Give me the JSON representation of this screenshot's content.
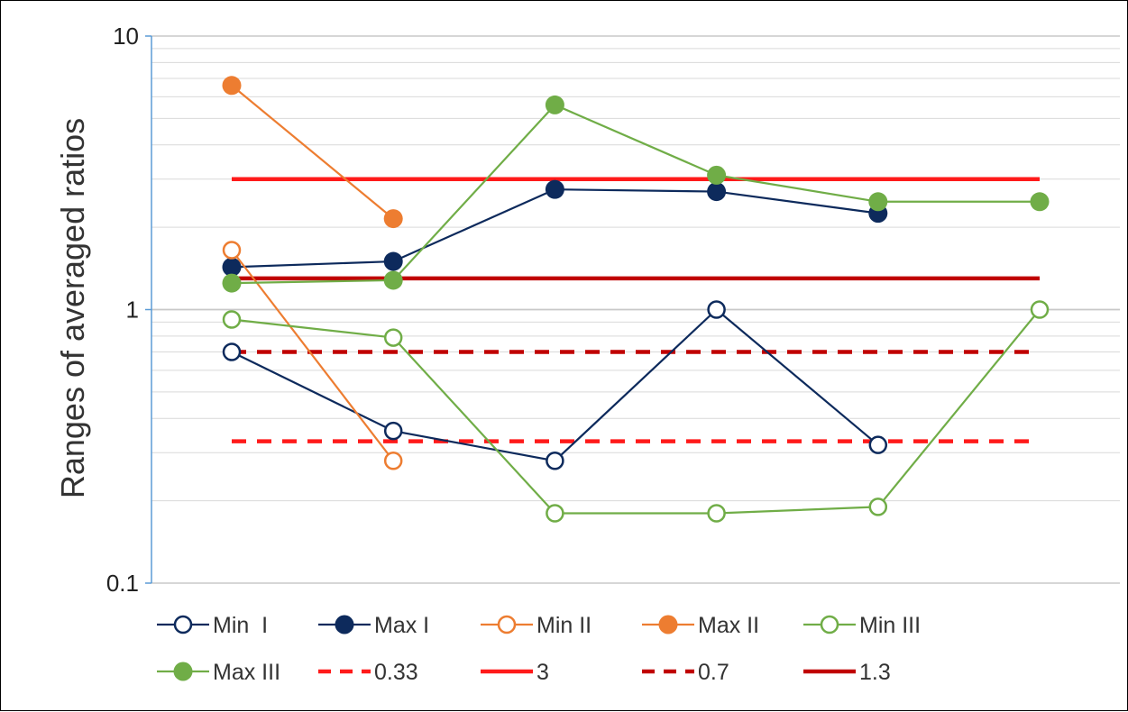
{
  "chart_data": {
    "type": "line",
    "title": "",
    "xlabel": "",
    "ylabel": "Ranges of averaged ratios",
    "yscale": "log",
    "ylim": [
      0.1,
      10
    ],
    "yticks": [
      {
        "value": 10,
        "label": "10"
      },
      {
        "value": 1,
        "label": "1"
      },
      {
        "value": 0.1,
        "label": "0.1"
      }
    ],
    "x": [
      1,
      2,
      3,
      4,
      5,
      6
    ],
    "grid": "horizontal",
    "legend_position": "bottom",
    "series": [
      {
        "name": "Min  I",
        "color": "#0d2a5c",
        "marker": "open",
        "style": "solid",
        "values": [
          0.7,
          0.36,
          0.28,
          1.0,
          0.32,
          null
        ]
      },
      {
        "name": "Max I",
        "color": "#0d2a5c",
        "marker": "filled",
        "style": "solid",
        "values": [
          1.43,
          1.5,
          2.75,
          2.7,
          2.25,
          null
        ]
      },
      {
        "name": "Min II",
        "color": "#ed7d31",
        "marker": "open",
        "style": "solid",
        "values": [
          1.65,
          0.28,
          null,
          null,
          null,
          null
        ]
      },
      {
        "name": "Max II",
        "color": "#ed7d31",
        "marker": "filled",
        "style": "solid",
        "values": [
          6.6,
          2.15,
          null,
          null,
          null,
          null
        ]
      },
      {
        "name": "Min III",
        "color": "#70ad47",
        "marker": "open",
        "style": "solid",
        "values": [
          0.92,
          0.79,
          0.18,
          0.18,
          0.19,
          1.0
        ]
      },
      {
        "name": "Max III",
        "color": "#70ad47",
        "marker": "filled",
        "style": "solid",
        "values": [
          1.25,
          1.28,
          5.6,
          3.1,
          2.48,
          2.48
        ]
      },
      {
        "name": "0.33",
        "color": "#ff1a1a",
        "marker": "none",
        "style": "dashed",
        "values": [
          0.33,
          0.33,
          0.33,
          0.33,
          0.33,
          0.33
        ]
      },
      {
        "name": "3",
        "color": "#ff1a1a",
        "marker": "none",
        "style": "solid",
        "values": [
          3,
          3,
          3,
          3,
          3,
          3
        ]
      },
      {
        "name": "0.7",
        "color": "#c00000",
        "marker": "none",
        "style": "dashed",
        "values": [
          0.7,
          0.7,
          0.7,
          0.7,
          0.7,
          0.7
        ]
      },
      {
        "name": "1.3",
        "color": "#c00000",
        "marker": "none",
        "style": "solid",
        "values": [
          1.3,
          1.3,
          1.3,
          1.3,
          1.3,
          1.3
        ]
      }
    ]
  }
}
